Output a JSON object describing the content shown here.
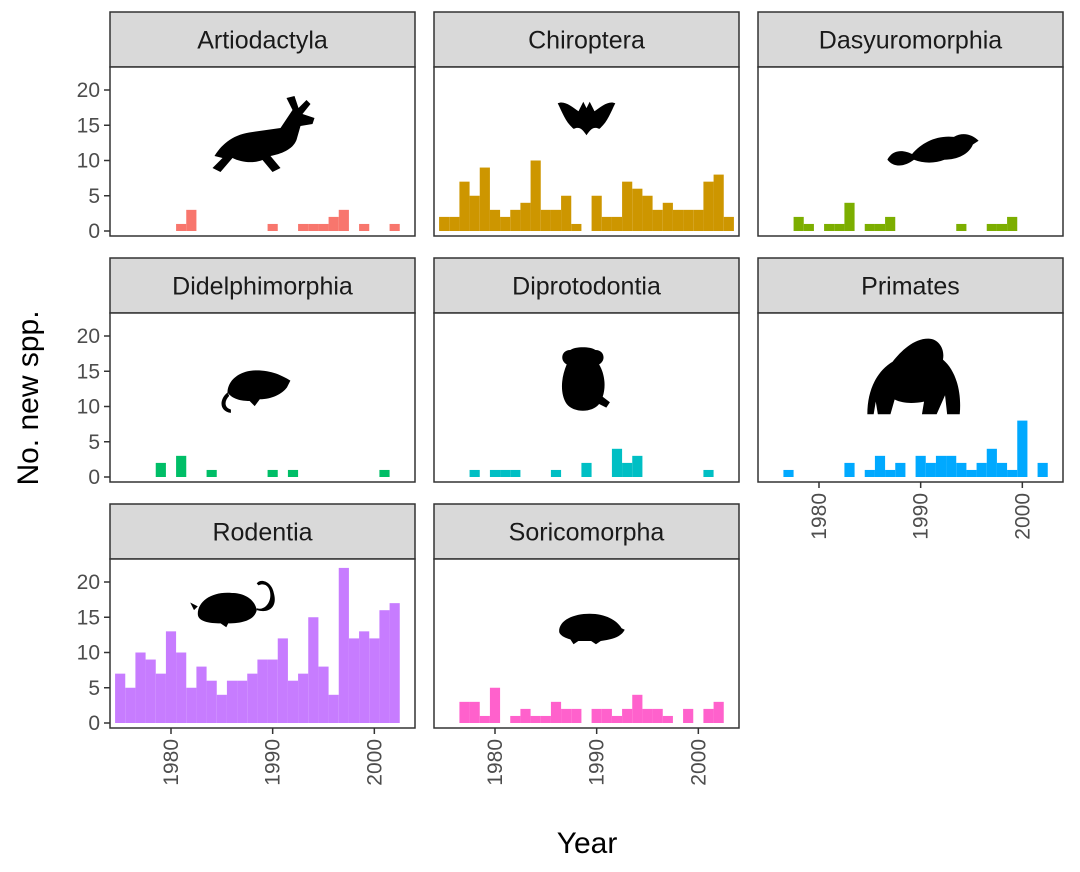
{
  "chart_data": {
    "type": "bar",
    "xlabel": "Year",
    "ylabel": "No. new spp.",
    "ylim": [
      0,
      23
    ],
    "xlim": [
      1974,
      2004
    ],
    "yticks": [
      0,
      5,
      10,
      15,
      20
    ],
    "xticks": [
      1980,
      1990,
      2000
    ],
    "bar_width_years": 1,
    "grid": false,
    "facets": [
      {
        "name": "Artiodactyla",
        "color": "#F8766D",
        "silhouette": "deer-silhouette-icon",
        "years": [
          1981,
          1982,
          1990,
          1993,
          1994,
          1995,
          1996,
          1997,
          1999,
          2002
        ],
        "values": [
          1,
          3,
          1,
          1,
          1,
          1,
          2,
          3,
          1,
          1
        ]
      },
      {
        "name": "Chiroptera",
        "color": "#CD9600",
        "silhouette": "bat-silhouette-icon",
        "years": [
          1975,
          1976,
          1977,
          1978,
          1979,
          1980,
          1981,
          1982,
          1983,
          1984,
          1985,
          1986,
          1987,
          1988,
          1990,
          1991,
          1992,
          1993,
          1994,
          1995,
          1996,
          1997,
          1998,
          1999,
          2000,
          2001,
          2002,
          2003
        ],
        "values": [
          2,
          2,
          7,
          5,
          9,
          3,
          2,
          3,
          4,
          10,
          3,
          3,
          5,
          1,
          5,
          2,
          2,
          7,
          6,
          5,
          3,
          4,
          3,
          3,
          3,
          7,
          8,
          2
        ]
      },
      {
        "name": "Dasyuromorphia",
        "color": "#7CAE00",
        "silhouette": "dunnart-silhouette-icon",
        "years": [
          1978,
          1979,
          1981,
          1982,
          1983,
          1985,
          1986,
          1987,
          1994,
          1997,
          1998,
          1999
        ],
        "values": [
          2,
          1,
          1,
          1,
          4,
          1,
          1,
          2,
          1,
          1,
          1,
          2
        ]
      },
      {
        "name": "Didelphimorphia",
        "color": "#00BE67",
        "silhouette": "opossum-silhouette-icon",
        "years": [
          1979,
          1981,
          1984,
          1990,
          1992,
          2001
        ],
        "values": [
          2,
          3,
          1,
          1,
          1,
          1
        ]
      },
      {
        "name": "Diprotodontia",
        "color": "#00BFC4",
        "silhouette": "koala-silhouette-icon",
        "years": [
          1978,
          1980,
          1981,
          1982,
          1986,
          1989,
          1992,
          1993,
          1994,
          2001
        ],
        "values": [
          1,
          1,
          1,
          1,
          1,
          2,
          4,
          2,
          3,
          1
        ]
      },
      {
        "name": "Primates",
        "color": "#00A9FF",
        "silhouette": "gorilla-silhouette-icon",
        "years": [
          1977,
          1983,
          1985,
          1986,
          1987,
          1988,
          1990,
          1991,
          1992,
          1993,
          1994,
          1995,
          1996,
          1997,
          1998,
          1999,
          2000,
          2002
        ],
        "values": [
          1,
          2,
          1,
          3,
          1,
          2,
          3,
          2,
          3,
          3,
          2,
          1,
          2,
          4,
          2,
          1,
          8,
          2
        ]
      },
      {
        "name": "Rodentia",
        "color": "#C77CFF",
        "silhouette": "mouse-silhouette-icon",
        "years": [
          1975,
          1976,
          1977,
          1978,
          1979,
          1980,
          1981,
          1982,
          1983,
          1984,
          1985,
          1986,
          1987,
          1988,
          1989,
          1990,
          1991,
          1992,
          1993,
          1994,
          1995,
          1996,
          1997,
          1998,
          1999,
          2000,
          2001,
          2002,
          2003
        ],
        "values": [
          7,
          5,
          10,
          9,
          7,
          13,
          10,
          5,
          8,
          6,
          4,
          6,
          6,
          7,
          9,
          9,
          12,
          6,
          7,
          15,
          8,
          4,
          22,
          12,
          13,
          12,
          16,
          17,
          0
        ]
      },
      {
        "name": "Soricomorpha",
        "color": "#FF61CC",
        "silhouette": "mole-silhouette-icon",
        "years": [
          1977,
          1978,
          1979,
          1980,
          1982,
          1983,
          1984,
          1985,
          1986,
          1987,
          1988,
          1990,
          1991,
          1992,
          1993,
          1994,
          1995,
          1996,
          1997,
          1999,
          2001,
          2002
        ],
        "values": [
          3,
          3,
          1,
          5,
          1,
          2,
          1,
          1,
          3,
          2,
          2,
          2,
          2,
          1,
          2,
          4,
          2,
          2,
          1,
          2,
          2,
          3
        ]
      }
    ]
  }
}
